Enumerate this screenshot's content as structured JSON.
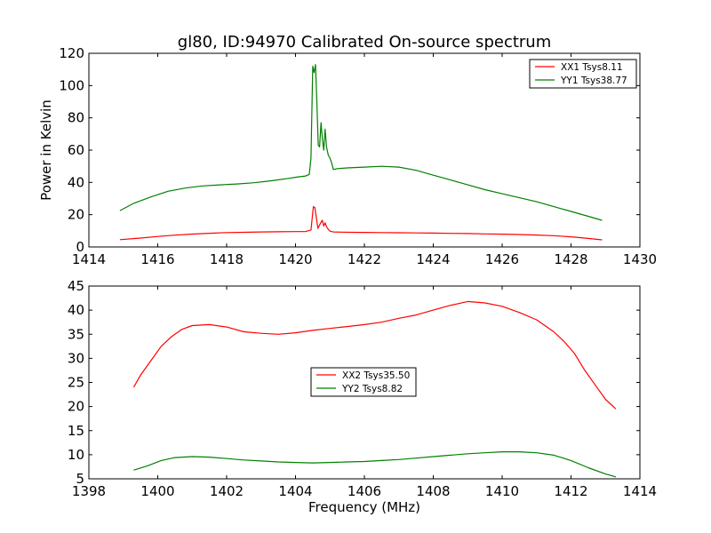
{
  "figure": {
    "title": "gl80, ID:94970 Calibrated On-source spectrum"
  },
  "chart_data": [
    {
      "type": "line",
      "title": "gl80, ID:94970 Calibrated On-source spectrum",
      "xlabel": "",
      "ylabel": "Power in Kelvin",
      "xlim": [
        1414,
        1430
      ],
      "ylim": [
        0,
        120
      ],
      "xticks": [
        1414,
        1416,
        1418,
        1420,
        1422,
        1424,
        1426,
        1428,
        1430
      ],
      "yticks": [
        0,
        20,
        40,
        60,
        80,
        100,
        120
      ],
      "grid": false,
      "legend": "top-right",
      "series": [
        {
          "name": "XX1 Tsys8.11",
          "color": "#ff0000",
          "x": [
            1414.9,
            1415.5,
            1416.0,
            1416.5,
            1417.0,
            1417.5,
            1418.0,
            1418.5,
            1419.0,
            1419.5,
            1420.0,
            1420.3,
            1420.45,
            1420.52,
            1420.56,
            1420.6,
            1420.65,
            1420.72,
            1420.78,
            1420.82,
            1420.86,
            1420.9,
            1420.95,
            1421.0,
            1421.1,
            1421.3,
            1421.6,
            1422.0,
            1422.5,
            1423.0,
            1423.5,
            1424.0,
            1424.5,
            1425.0,
            1425.5,
            1426.0,
            1426.5,
            1427.0,
            1427.5,
            1428.0,
            1428.5,
            1428.9
          ],
          "y": [
            4.5,
            5.5,
            6.5,
            7.3,
            8.0,
            8.5,
            8.9,
            9.1,
            9.3,
            9.4,
            9.5,
            9.6,
            10.5,
            25.0,
            24.5,
            19.0,
            11.5,
            14.5,
            16.5,
            13.0,
            15.0,
            12.5,
            11.0,
            9.8,
            9.3,
            9.2,
            9.1,
            9.0,
            8.9,
            8.8,
            8.7,
            8.6,
            8.4,
            8.3,
            8.1,
            7.9,
            7.7,
            7.4,
            7.0,
            6.3,
            5.3,
            4.4
          ]
        },
        {
          "name": "YY1 Tsys38.77",
          "color": "#008000",
          "x": [
            1414.9,
            1415.3,
            1415.8,
            1416.3,
            1416.8,
            1417.3,
            1417.8,
            1418.3,
            1418.8,
            1419.3,
            1419.8,
            1420.1,
            1420.3,
            1420.4,
            1420.45,
            1420.5,
            1420.54,
            1420.58,
            1420.62,
            1420.66,
            1420.7,
            1420.74,
            1420.78,
            1420.82,
            1420.86,
            1420.9,
            1420.95,
            1421.0,
            1421.05,
            1421.1,
            1421.2,
            1421.5,
            1422.0,
            1422.5,
            1423.0,
            1423.5,
            1424.0,
            1424.5,
            1425.0,
            1425.5,
            1426.0,
            1426.5,
            1427.0,
            1427.5,
            1428.0,
            1428.5,
            1428.9
          ],
          "y": [
            22.5,
            27.0,
            31.0,
            34.5,
            36.5,
            37.8,
            38.5,
            39.0,
            39.8,
            41.0,
            42.5,
            43.5,
            44.0,
            45.0,
            55.0,
            112.0,
            108.0,
            113.0,
            90.0,
            63.0,
            62.0,
            77.0,
            67.0,
            60.0,
            73.0,
            62.0,
            57.0,
            55.0,
            52.0,
            48.0,
            48.5,
            49.0,
            49.5,
            50.0,
            49.5,
            47.5,
            44.5,
            41.5,
            38.5,
            35.5,
            33.0,
            30.5,
            28.0,
            25.0,
            22.0,
            19.0,
            16.5
          ]
        }
      ]
    },
    {
      "type": "line",
      "title": "",
      "xlabel": "Frequency (MHz)",
      "ylabel": "",
      "xlim": [
        1398,
        1414
      ],
      "ylim": [
        5,
        45
      ],
      "xticks": [
        1398,
        1400,
        1402,
        1404,
        1406,
        1408,
        1410,
        1412,
        1414
      ],
      "yticks": [
        5,
        10,
        15,
        20,
        25,
        30,
        35,
        40,
        45
      ],
      "grid": false,
      "legend": "center",
      "series": [
        {
          "name": "XX2 Tsys35.50",
          "color": "#ff0000",
          "x": [
            1399.3,
            1399.5,
            1399.8,
            1400.1,
            1400.4,
            1400.7,
            1401.0,
            1401.5,
            1402.0,
            1402.5,
            1403.0,
            1403.5,
            1404.0,
            1404.5,
            1405.0,
            1405.5,
            1406.0,
            1406.5,
            1407.0,
            1407.5,
            1408.0,
            1408.5,
            1409.0,
            1409.5,
            1410.0,
            1410.5,
            1411.0,
            1411.5,
            1411.8,
            1412.1,
            1412.4,
            1412.7,
            1413.0,
            1413.3
          ],
          "y": [
            24.0,
            26.5,
            29.5,
            32.5,
            34.5,
            36.0,
            36.8,
            37.0,
            36.5,
            35.5,
            35.2,
            35.0,
            35.3,
            35.8,
            36.2,
            36.6,
            37.0,
            37.5,
            38.3,
            39.0,
            40.0,
            41.0,
            41.8,
            41.5,
            40.8,
            39.5,
            38.0,
            35.5,
            33.5,
            31.0,
            27.5,
            24.5,
            21.5,
            19.5
          ]
        },
        {
          "name": "YY2 Tsys8.82",
          "color": "#008000",
          "x": [
            1399.3,
            1399.7,
            1400.1,
            1400.5,
            1401.0,
            1401.5,
            1402.0,
            1402.5,
            1403.0,
            1403.5,
            1404.0,
            1404.5,
            1405.0,
            1405.5,
            1406.0,
            1406.5,
            1407.0,
            1407.5,
            1408.0,
            1408.5,
            1409.0,
            1409.5,
            1410.0,
            1410.5,
            1411.0,
            1411.5,
            1412.0,
            1412.5,
            1413.0,
            1413.3
          ],
          "y": [
            6.8,
            7.7,
            8.8,
            9.4,
            9.6,
            9.5,
            9.2,
            8.9,
            8.7,
            8.5,
            8.4,
            8.3,
            8.4,
            8.5,
            8.6,
            8.8,
            9.0,
            9.3,
            9.6,
            9.9,
            10.2,
            10.4,
            10.6,
            10.6,
            10.4,
            9.9,
            8.8,
            7.3,
            6.0,
            5.4
          ]
        }
      ]
    }
  ]
}
